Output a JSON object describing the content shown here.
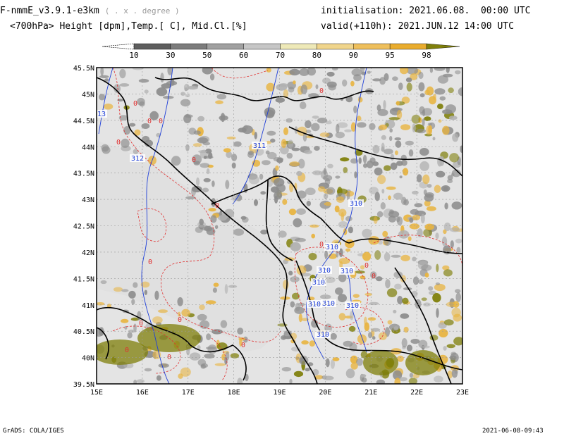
{
  "header": {
    "model": "F-nmmE_v3.9.1-e3km",
    "grid_note": "( . x . degree )",
    "fields": "<700hPa> Height [dpm],Temp.[ C], Mid.Cl.[%]",
    "init_label": "initialisation:",
    "init_value": "2021.06.08.  00:00 UTC",
    "valid_label": "valid(+110h):",
    "valid_value": "2021.JUN.12 14:00 UTC"
  },
  "colorbar": {
    "labels": [
      "10",
      "30",
      "50",
      "60",
      "70",
      "80",
      "90",
      "95",
      "98"
    ],
    "colors": [
      "#ffffff",
      "#5e5e5e",
      "#7c7c7c",
      "#a0a0a0",
      "#c6c6c6",
      "#eee9b8",
      "#f0d58c",
      "#eebf5c",
      "#e9ac2d",
      "#7f7f0a"
    ]
  },
  "map": {
    "background": "#e4e4e4",
    "x_ticks": [
      "15E",
      "16E",
      "17E",
      "18E",
      "19E",
      "20E",
      "21E",
      "22E",
      "23E"
    ],
    "y_ticks": [
      "45.5N",
      "45N",
      "44.5N",
      "44N",
      "43.5N",
      "43N",
      "42.5N",
      "42N",
      "41.5N",
      "41N",
      "40.5N",
      "40N",
      "39.5N"
    ],
    "height_contour_labels": [
      "311",
      "312",
      "313",
      "310",
      "310",
      "310",
      "310",
      "310",
      "310",
      "310",
      "310",
      "310"
    ],
    "temp_contour_labels": [
      "0",
      "0",
      "0",
      "0",
      "0",
      "0",
      "0",
      "0",
      "0",
      "0",
      "0",
      "0",
      "0",
      "0",
      "0",
      "0"
    ],
    "colors": {
      "height_contour": "#1f3fd8",
      "temp_contour": "#e03030",
      "coastline": "#000000",
      "cloud_low": "#8c8c8c",
      "cloud_high": "#e8b440",
      "cloud_max": "#7f7f0a"
    }
  },
  "footer": {
    "left": "GrADS: COLA/IGES",
    "right": "2021-06-08-09:43"
  }
}
